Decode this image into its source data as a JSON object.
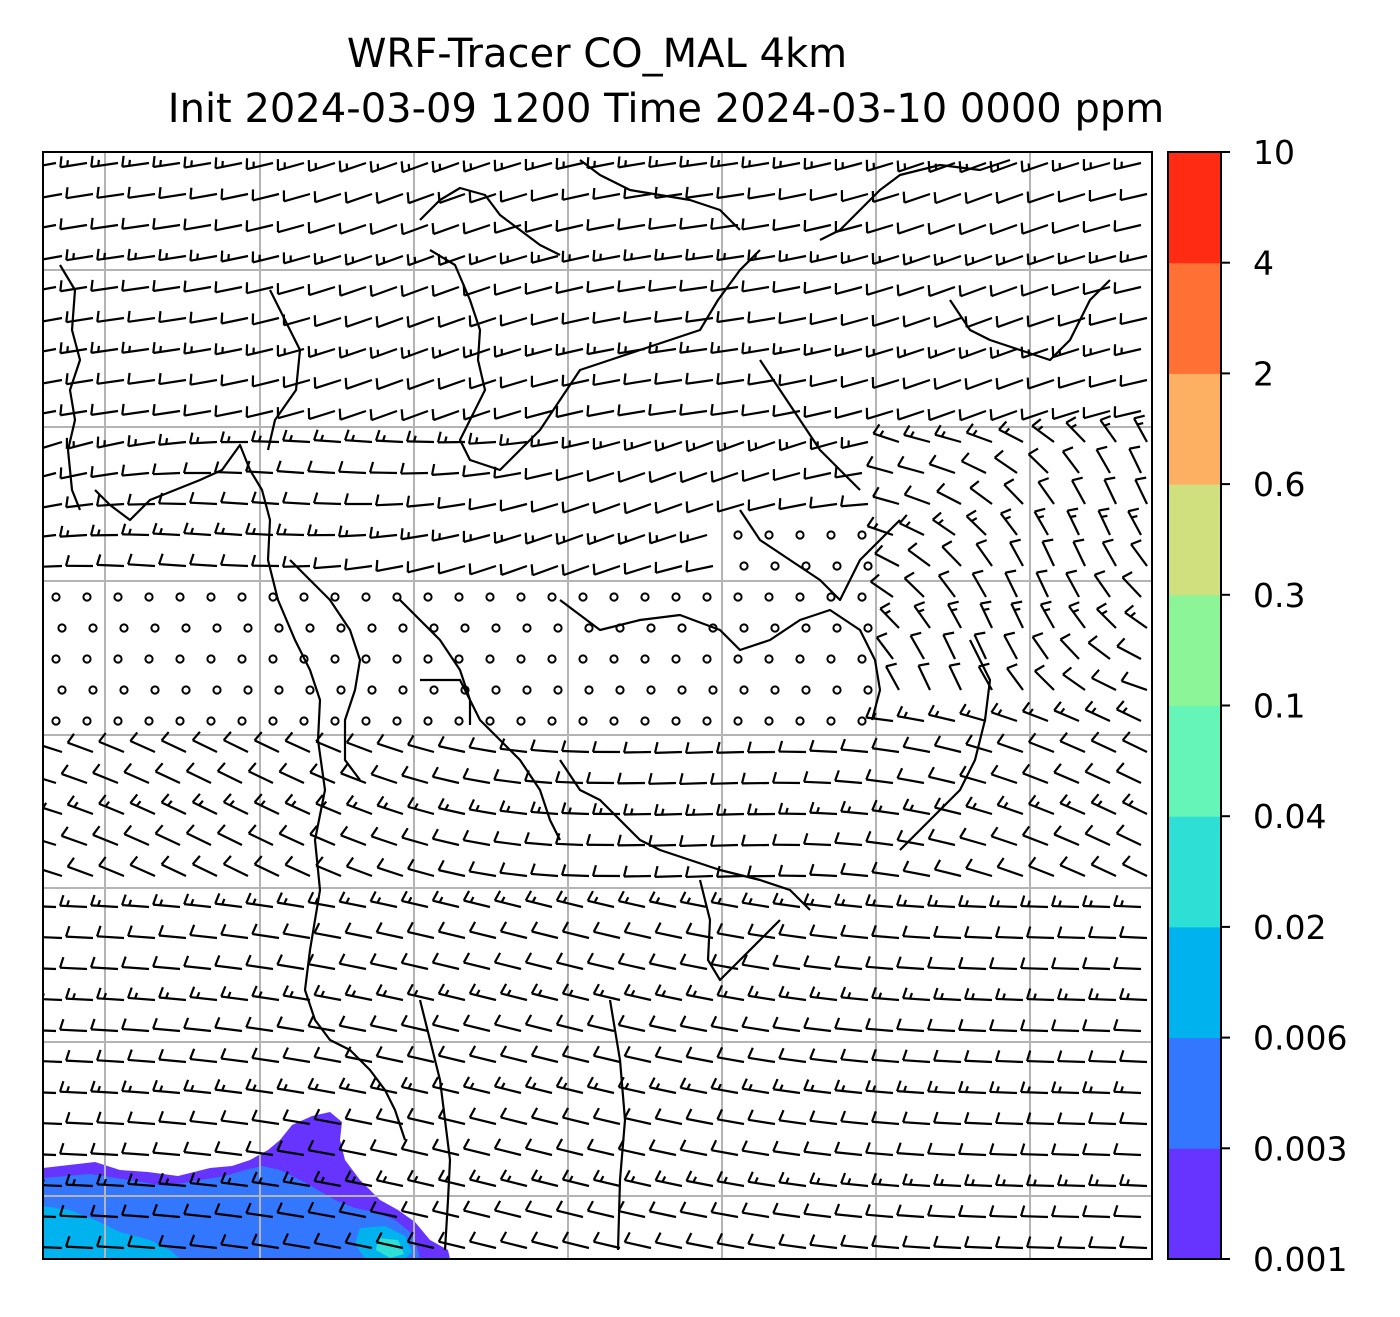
{
  "chart_data": {
    "type": "map",
    "title_line1": "WRF-Tracer CO_MAL 4km",
    "title_line2": "Init 2024-03-09 1200 Time 2024-03-10 0000 ppm",
    "colorbar": {
      "levels": [
        "0.001",
        "0.003",
        "0.006",
        "0.02",
        "0.04",
        "0.1",
        "0.3",
        "0.6",
        "2",
        "4",
        "10"
      ],
      "colors": [
        "#6633ff",
        "#3377ff",
        "#00b2ee",
        "#2ddfd4",
        "#66f5b8",
        "#8cf598",
        "#d0e07e",
        "#feb062",
        "#ff7035",
        "#ff2b12"
      ]
    },
    "grid": true,
    "wind_barbs": true,
    "coastlines": true,
    "concentration_region": "bottom-left",
    "calm_region": "central band"
  }
}
